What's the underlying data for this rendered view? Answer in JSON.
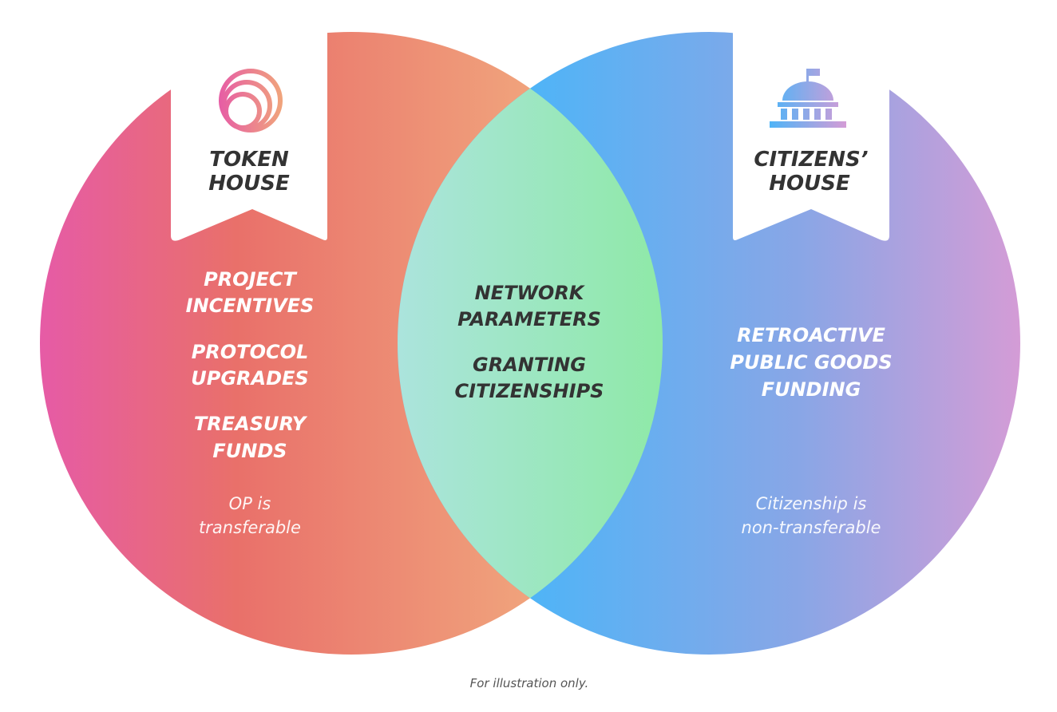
{
  "token_house": {
    "title_line1": "TOKEN",
    "title_line2": "HOUSE",
    "icon": "token-rings-icon",
    "items": [
      {
        "line1": "PROJECT",
        "line2": "INCENTIVES"
      },
      {
        "line1": "PROTOCOL",
        "line2": "UPGRADES"
      },
      {
        "line1": "TREASURY",
        "line2": "FUNDS"
      }
    ],
    "note_line1": "OP is",
    "note_line2": "transferable"
  },
  "citizens_house": {
    "title_line1": "CITIZENS’",
    "title_line2": "HOUSE",
    "icon": "capitol-building-icon",
    "items": [
      {
        "line1": "RETROACTIVE",
        "line2": "PUBLIC GOODS",
        "line3": "FUNDING"
      }
    ],
    "note_line1": "Citizenship is",
    "note_line2": "non-transferable"
  },
  "shared": {
    "items": [
      {
        "line1": "NETWORK",
        "line2": "PARAMETERS"
      },
      {
        "line1": "GRANTING",
        "line2": "CITIZENSHIPS"
      }
    ]
  },
  "footer": "For illustration only.",
  "colors": {
    "token_left": "#e65ba6",
    "token_mid": "#e9706a",
    "token_right": "#f0a37c",
    "citizen_left": "#4fb4f7",
    "citizen_right": "#d49cd6",
    "overlap_left": "#abe4dc",
    "overlap_right": "#8fe9a8",
    "dark_text": "#333333",
    "light_text": "#ffffff"
  }
}
